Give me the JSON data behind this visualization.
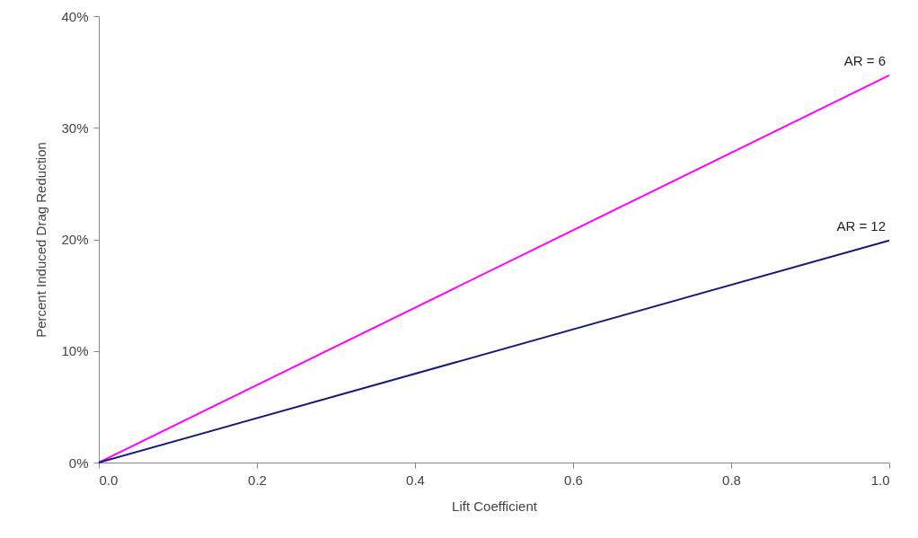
{
  "chart_data": {
    "type": "line",
    "xlabel": "Lift Coefficient",
    "ylabel": "Percent Induced Drag Reduction",
    "x": [
      0,
      1
    ],
    "series": [
      {
        "name": "AR = 6",
        "color": "#ff00ff",
        "values": [
          0,
          34.7
        ]
      },
      {
        "name": "AR = 12",
        "color": "#1a1a7a",
        "values": [
          0,
          19.9
        ]
      }
    ],
    "xlim": [
      0,
      1
    ],
    "xticks": [
      {
        "value": 0,
        "label": "0.0"
      },
      {
        "value": 0.2,
        "label": "0.2"
      },
      {
        "value": 0.4,
        "label": "0.4"
      },
      {
        "value": 0.6,
        "label": "0.6"
      },
      {
        "value": 0.8,
        "label": "0.8"
      },
      {
        "value": 1,
        "label": "1.0"
      }
    ],
    "ylim": [
      0,
      40
    ],
    "yticks": [
      {
        "value": 0,
        "label": "0%"
      },
      {
        "value": 10,
        "label": "10%"
      },
      {
        "value": 20,
        "label": "20%"
      },
      {
        "value": 30,
        "label": "30%"
      },
      {
        "value": 40,
        "label": "40%"
      }
    ],
    "grid": false,
    "marker": "none",
    "line_style": "solid"
  }
}
